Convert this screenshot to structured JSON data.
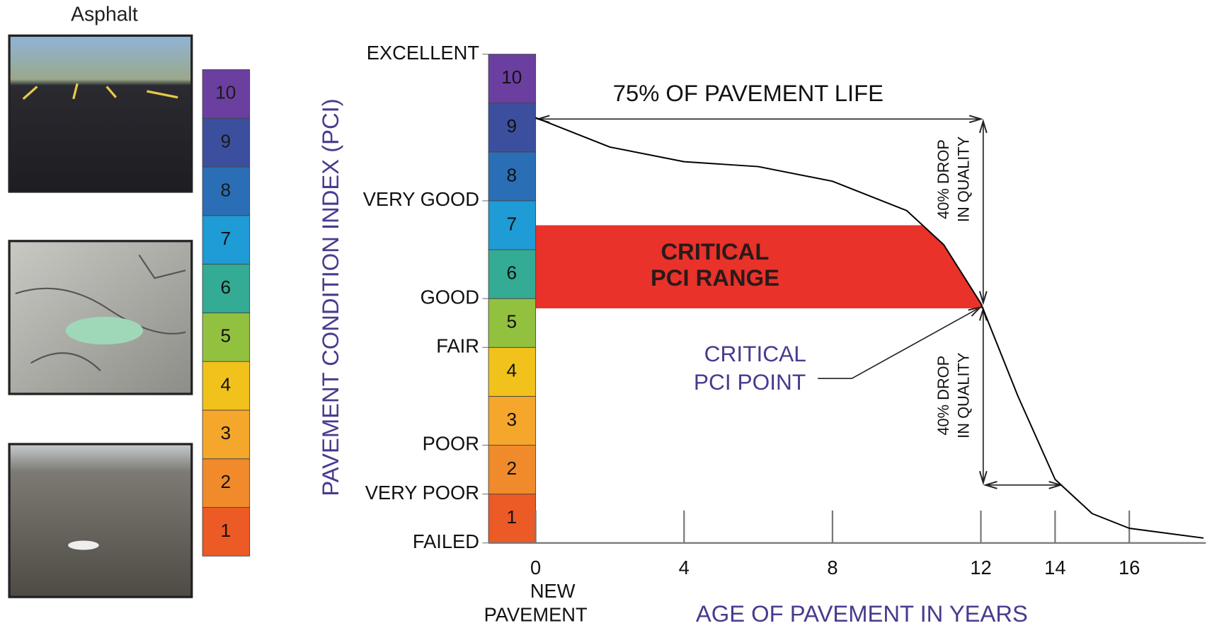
{
  "side_panel": {
    "title": "Asphalt"
  },
  "pci_scale": [
    {
      "label": "1",
      "color": "#ec5a25"
    },
    {
      "label": "2",
      "color": "#f08a2a"
    },
    {
      "label": "3",
      "color": "#f4a72a"
    },
    {
      "label": "4",
      "color": "#f1c21c"
    },
    {
      "label": "5",
      "color": "#92c140"
    },
    {
      "label": "6",
      "color": "#34ab94"
    },
    {
      "label": "7",
      "color": "#1f9bd6"
    },
    {
      "label": "8",
      "color": "#2a6eb6"
    },
    {
      "label": "9",
      "color": "#3c4f9f"
    },
    {
      "label": "10",
      "color": "#6b3fa0"
    }
  ],
  "chart_data": {
    "type": "line",
    "y_label": "PAVEMENT CONDITION INDEX (PCI)",
    "x_label": "AGE OF PAVEMENT IN YEARS",
    "x": [
      0,
      2,
      4,
      6,
      8,
      10,
      11,
      12,
      13,
      14,
      15,
      16,
      18
    ],
    "series": [
      {
        "color": "#000000",
        "values": [
          8.7,
          8.1,
          7.8,
          7.7,
          7.4,
          6.8,
          6.1,
          4.9,
          3.0,
          1.3,
          0.6,
          0.3,
          0.1
        ]
      }
    ],
    "xlim": [
      0,
      18
    ],
    "ylim": [
      0,
      10
    ],
    "xticks": [
      0,
      4,
      8,
      12,
      14,
      16
    ],
    "yticks": [
      {
        "value": 0,
        "label": "FAILED"
      },
      {
        "value": 1,
        "label": "VERY POOR"
      },
      {
        "value": 2,
        "label": "POOR"
      },
      {
        "value": 4,
        "label": "FAIR"
      },
      {
        "value": 5,
        "label": "GOOD"
      },
      {
        "value": 7,
        "label": "VERY GOOD"
      },
      {
        "value": 10,
        "label": "EXCELLENT"
      }
    ],
    "critical_range": [
      4.8,
      6.5
    ],
    "critical_color": "#e8322a",
    "life_label": "75% OF PAVEMENT LIFE",
    "drop_label": [
      "40% DROP",
      "IN QUALITY"
    ],
    "range_label": [
      "CRITICAL",
      "PCI RANGE"
    ],
    "point_label": [
      "CRITICAL",
      "PCI POINT"
    ],
    "x_note": [
      "NEW",
      "PAVEMENT"
    ]
  }
}
